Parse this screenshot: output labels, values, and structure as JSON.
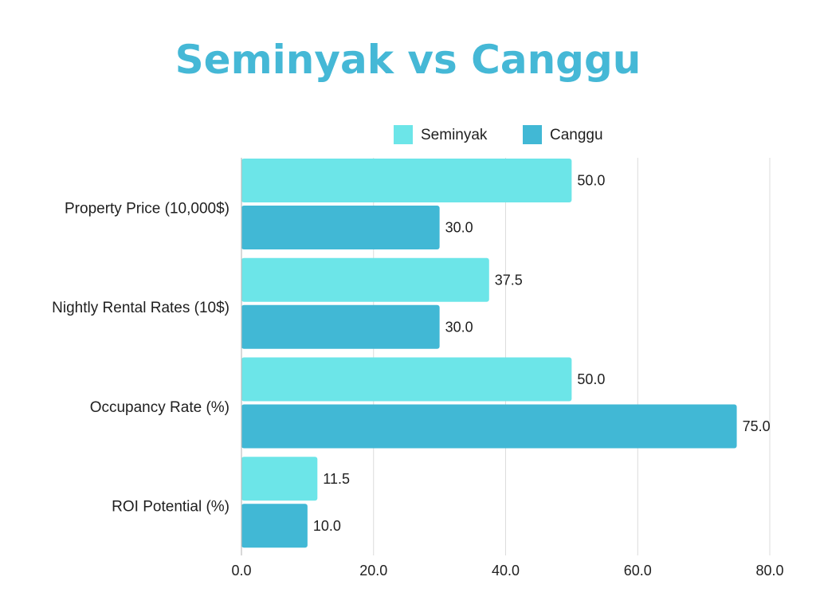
{
  "chart_data": {
    "type": "bar",
    "orientation": "horizontal",
    "title": "Seminyak vs Canggu",
    "categories": [
      "Property Price (10,000$)",
      "Nightly Rental Rates (10$)",
      "Occupancy Rate (%)",
      "ROI Potential (%)"
    ],
    "series": [
      {
        "name": "Seminyak",
        "color": "#6ce5e8",
        "values": [
          50.0,
          37.5,
          50.0,
          11.5
        ],
        "value_labels": [
          "50.0",
          "37.5",
          "50.0",
          "11.5"
        ]
      },
      {
        "name": "Canggu",
        "color": "#41b8d5",
        "values": [
          30.0,
          30.0,
          75.0,
          10.0
        ],
        "value_labels": [
          "30.0",
          "30.0",
          "75.0",
          "10.0"
        ]
      }
    ],
    "xlim": [
      0,
      80
    ],
    "xticks": [
      0,
      20,
      40,
      60,
      80
    ],
    "xtick_labels": [
      "0.0",
      "20.0",
      "40.0",
      "60.0",
      "80.0"
    ],
    "xlabel": "",
    "ylabel": "",
    "grid": "vertical",
    "legend_position": "top-right"
  }
}
